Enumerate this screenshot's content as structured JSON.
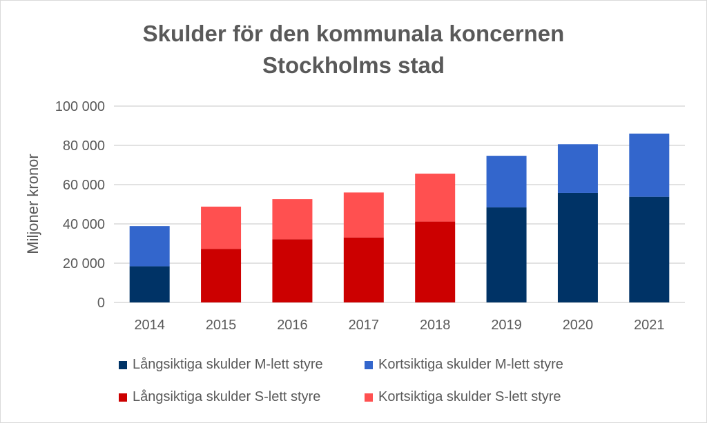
{
  "chart_data": {
    "type": "bar",
    "stacked": true,
    "title": [
      "Skulder för den kommunala koncernen",
      "Stockholms stad"
    ],
    "xlabel": "",
    "ylabel": "Miljoner kronor",
    "ylim": [
      0,
      100000
    ],
    "yticks": [
      "0",
      "20 000",
      "40 000",
      "60 000",
      "80 000",
      "100 000"
    ],
    "ytick_values": [
      0,
      20000,
      40000,
      60000,
      80000,
      100000
    ],
    "categories": [
      "2014",
      "2015",
      "2016",
      "2017",
      "2018",
      "2019",
      "2020",
      "2021"
    ],
    "grid": true,
    "legend_position": "bottom",
    "series": [
      {
        "name": "Långsiktiga skulder M-lett styre",
        "color": "#003366",
        "values": [
          18400,
          null,
          null,
          null,
          null,
          48400,
          55800,
          53800
        ]
      },
      {
        "name": "Kortsiktiga skulder M-lett styre",
        "color": "#3366cc",
        "values": [
          20500,
          null,
          null,
          null,
          null,
          26300,
          24800,
          32200
        ]
      },
      {
        "name": "Långsiktiga skulder S-lett styre",
        "color": "#cc0000",
        "values": [
          null,
          27300,
          32200,
          33100,
          41200,
          null,
          null,
          null
        ]
      },
      {
        "name": "Kortsiktiga skulder S-lett styre",
        "color": "#ff5050",
        "values": [
          null,
          21500,
          20400,
          22900,
          24400,
          null,
          null,
          null
        ]
      }
    ]
  }
}
